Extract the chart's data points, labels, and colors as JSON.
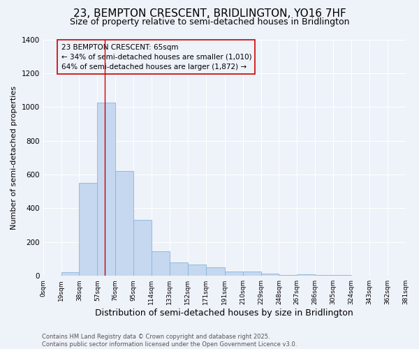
{
  "title1": "23, BEMPTON CRESCENT, BRIDLINGTON, YO16 7HF",
  "title2": "Size of property relative to semi-detached houses in Bridlington",
  "xlabel": "Distribution of semi-detached houses by size in Bridlington",
  "ylabel": "Number of semi-detached properties",
  "bar_values": [
    0,
    20,
    550,
    1025,
    620,
    330,
    145,
    80,
    65,
    50,
    25,
    25,
    15,
    5,
    10,
    5,
    3,
    2,
    0,
    0
  ],
  "bin_edges": [
    0,
    19,
    38,
    57,
    76,
    95,
    114,
    133,
    152,
    171,
    191,
    210,
    229,
    248,
    267,
    286,
    305,
    324,
    343,
    362,
    381
  ],
  "tick_labels": [
    "0sqm",
    "19sqm",
    "38sqm",
    "57sqm",
    "76sqm",
    "95sqm",
    "114sqm",
    "133sqm",
    "152sqm",
    "171sqm",
    "191sqm",
    "210sqm",
    "229sqm",
    "248sqm",
    "267sqm",
    "286sqm",
    "305sqm",
    "324sqm",
    "343sqm",
    "362sqm",
    "381sqm"
  ],
  "bar_color": "#c5d8f0",
  "bar_edgecolor": "#8ab4d8",
  "property_line_x": 65,
  "annotation_text": "23 BEMPTON CRESCENT: 65sqm\n← 34% of semi-detached houses are smaller (1,010)\n64% of semi-detached houses are larger (1,872) →",
  "annotation_box_color": "#cc0000",
  "vline_color": "#cc0000",
  "ylim": [
    0,
    1400
  ],
  "yticks": [
    0,
    200,
    400,
    600,
    800,
    1000,
    1200,
    1400
  ],
  "footnote": "Contains HM Land Registry data © Crown copyright and database right 2025.\nContains public sector information licensed under the Open Government Licence v3.0.",
  "bg_color": "#eef2f9",
  "grid_color": "#ffffff",
  "title1_fontsize": 11,
  "title2_fontsize": 9,
  "xlabel_fontsize": 9,
  "ylabel_fontsize": 8,
  "annot_fontsize": 7.5,
  "footnote_fontsize": 6
}
